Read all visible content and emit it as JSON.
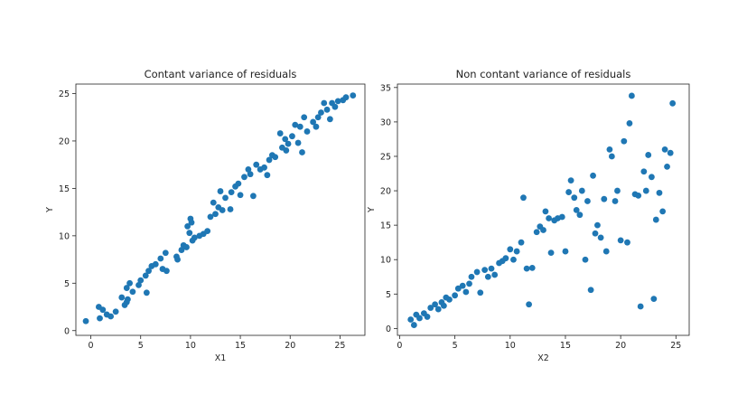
{
  "chart_data": [
    {
      "type": "scatter",
      "title": "Contant variance of residuals",
      "xlabel": "X1",
      "ylabel": "Y",
      "xlim": [
        -1.5,
        27.5
      ],
      "ylim": [
        -0.5,
        26
      ],
      "xticks": [
        0,
        5,
        10,
        15,
        20,
        25
      ],
      "yticks": [
        0,
        5,
        10,
        15,
        20,
        25
      ],
      "grid": false,
      "marker_color": "#1f77b4",
      "points": [
        [
          -0.5,
          1.0
        ],
        [
          0.8,
          2.5
        ],
        [
          0.9,
          1.3
        ],
        [
          1.2,
          2.2
        ],
        [
          1.6,
          1.7
        ],
        [
          2.0,
          1.5
        ],
        [
          2.5,
          2.0
        ],
        [
          3.1,
          3.5
        ],
        [
          3.4,
          2.7
        ],
        [
          3.6,
          3.0
        ],
        [
          3.6,
          4.5
        ],
        [
          3.7,
          3.3
        ],
        [
          3.9,
          5.0
        ],
        [
          4.2,
          4.1
        ],
        [
          4.8,
          4.8
        ],
        [
          5.0,
          5.3
        ],
        [
          5.5,
          5.8
        ],
        [
          5.6,
          4.0
        ],
        [
          5.8,
          6.3
        ],
        [
          6.1,
          6.8
        ],
        [
          6.5,
          7.0
        ],
        [
          7.0,
          7.6
        ],
        [
          7.2,
          6.5
        ],
        [
          7.5,
          8.2
        ],
        [
          7.6,
          6.3
        ],
        [
          8.6,
          7.8
        ],
        [
          8.7,
          7.5
        ],
        [
          9.1,
          8.5
        ],
        [
          9.3,
          9.0
        ],
        [
          9.6,
          8.8
        ],
        [
          9.7,
          11.0
        ],
        [
          9.9,
          10.3
        ],
        [
          10.0,
          11.8
        ],
        [
          10.1,
          11.4
        ],
        [
          10.2,
          9.5
        ],
        [
          10.4,
          9.8
        ],
        [
          10.9,
          10.0
        ],
        [
          11.3,
          10.2
        ],
        [
          11.7,
          10.5
        ],
        [
          12.0,
          12.0
        ],
        [
          12.3,
          13.5
        ],
        [
          12.5,
          12.3
        ],
        [
          12.8,
          13.0
        ],
        [
          13.0,
          14.7
        ],
        [
          13.2,
          12.7
        ],
        [
          13.5,
          14.0
        ],
        [
          14.0,
          12.8
        ],
        [
          14.1,
          14.6
        ],
        [
          14.5,
          15.2
        ],
        [
          14.8,
          15.5
        ],
        [
          15.0,
          14.3
        ],
        [
          15.4,
          16.2
        ],
        [
          15.8,
          17.0
        ],
        [
          16.0,
          16.5
        ],
        [
          16.3,
          14.2
        ],
        [
          16.6,
          17.5
        ],
        [
          17.0,
          17.0
        ],
        [
          17.4,
          17.2
        ],
        [
          17.7,
          16.4
        ],
        [
          17.9,
          18.0
        ],
        [
          18.2,
          18.5
        ],
        [
          18.5,
          18.3
        ],
        [
          19.0,
          20.8
        ],
        [
          19.2,
          19.3
        ],
        [
          19.5,
          20.2
        ],
        [
          19.6,
          19.0
        ],
        [
          19.8,
          19.7
        ],
        [
          20.2,
          20.5
        ],
        [
          20.5,
          21.7
        ],
        [
          20.8,
          19.8
        ],
        [
          21.0,
          21.5
        ],
        [
          21.2,
          18.8
        ],
        [
          21.4,
          22.5
        ],
        [
          21.7,
          21.0
        ],
        [
          22.3,
          22.0
        ],
        [
          22.6,
          21.5
        ],
        [
          22.8,
          22.5
        ],
        [
          23.1,
          23.0
        ],
        [
          23.4,
          24.0
        ],
        [
          23.7,
          23.3
        ],
        [
          24.0,
          22.3
        ],
        [
          24.2,
          24.0
        ],
        [
          24.5,
          23.6
        ],
        [
          24.8,
          24.2
        ],
        [
          25.3,
          24.3
        ],
        [
          25.6,
          24.6
        ],
        [
          26.3,
          24.8
        ]
      ]
    },
    {
      "type": "scatter",
      "title": "Non contant variance of residuals",
      "xlabel": "X2",
      "ylabel": "Y",
      "xlim": [
        -0.2,
        26.2
      ],
      "ylim": [
        -1.0,
        35.5
      ],
      "xticks": [
        0,
        5,
        10,
        15,
        20,
        25
      ],
      "yticks": [
        0,
        5,
        10,
        15,
        20,
        25,
        30,
        35
      ],
      "grid": false,
      "marker_color": "#1f77b4",
      "points": [
        [
          1.0,
          1.3
        ],
        [
          1.3,
          0.5
        ],
        [
          1.5,
          2.0
        ],
        [
          1.8,
          1.5
        ],
        [
          2.2,
          2.2
        ],
        [
          2.5,
          1.7
        ],
        [
          2.8,
          3.0
        ],
        [
          3.2,
          3.5
        ],
        [
          3.5,
          2.8
        ],
        [
          3.8,
          3.8
        ],
        [
          4.0,
          3.3
        ],
        [
          4.2,
          4.5
        ],
        [
          4.5,
          4.2
        ],
        [
          5.0,
          4.8
        ],
        [
          5.3,
          5.8
        ],
        [
          5.7,
          6.2
        ],
        [
          6.0,
          5.3
        ],
        [
          6.3,
          6.5
        ],
        [
          6.5,
          7.5
        ],
        [
          7.0,
          8.2
        ],
        [
          7.3,
          5.2
        ],
        [
          7.7,
          8.5
        ],
        [
          8.0,
          7.5
        ],
        [
          8.3,
          8.7
        ],
        [
          8.6,
          7.8
        ],
        [
          9.0,
          9.5
        ],
        [
          9.3,
          9.8
        ],
        [
          9.6,
          10.2
        ],
        [
          10.0,
          11.5
        ],
        [
          10.3,
          10.0
        ],
        [
          10.6,
          11.2
        ],
        [
          11.0,
          12.5
        ],
        [
          11.2,
          19.0
        ],
        [
          11.5,
          8.7
        ],
        [
          11.7,
          3.5
        ],
        [
          12.0,
          8.8
        ],
        [
          12.4,
          14.0
        ],
        [
          12.7,
          14.8
        ],
        [
          13.0,
          14.3
        ],
        [
          13.2,
          17.0
        ],
        [
          13.5,
          16.0
        ],
        [
          13.7,
          11.0
        ],
        [
          14.0,
          15.7
        ],
        [
          14.3,
          16.0
        ],
        [
          14.7,
          16.2
        ],
        [
          15.0,
          11.2
        ],
        [
          15.3,
          19.8
        ],
        [
          15.5,
          21.5
        ],
        [
          15.8,
          19.0
        ],
        [
          16.0,
          17.2
        ],
        [
          16.3,
          16.5
        ],
        [
          16.5,
          20.0
        ],
        [
          16.8,
          10.0
        ],
        [
          17.0,
          18.5
        ],
        [
          17.3,
          5.6
        ],
        [
          17.5,
          22.2
        ],
        [
          17.7,
          13.8
        ],
        [
          17.9,
          15.0
        ],
        [
          18.2,
          13.2
        ],
        [
          18.5,
          18.8
        ],
        [
          18.7,
          11.2
        ],
        [
          19.0,
          26.0
        ],
        [
          19.2,
          25.0
        ],
        [
          19.5,
          18.5
        ],
        [
          19.7,
          20.0
        ],
        [
          20.0,
          12.8
        ],
        [
          20.3,
          27.2
        ],
        [
          20.6,
          12.5
        ],
        [
          20.8,
          29.8
        ],
        [
          21.0,
          33.8
        ],
        [
          21.3,
          19.5
        ],
        [
          21.6,
          19.3
        ],
        [
          21.8,
          3.2
        ],
        [
          22.1,
          22.8
        ],
        [
          22.3,
          20.0
        ],
        [
          22.5,
          25.2
        ],
        [
          22.8,
          22.0
        ],
        [
          23.0,
          4.3
        ],
        [
          23.2,
          15.8
        ],
        [
          23.5,
          19.7
        ],
        [
          23.8,
          17.0
        ],
        [
          24.0,
          26.0
        ],
        [
          24.2,
          23.5
        ],
        [
          24.5,
          25.5
        ],
        [
          24.7,
          32.7
        ]
      ]
    }
  ]
}
